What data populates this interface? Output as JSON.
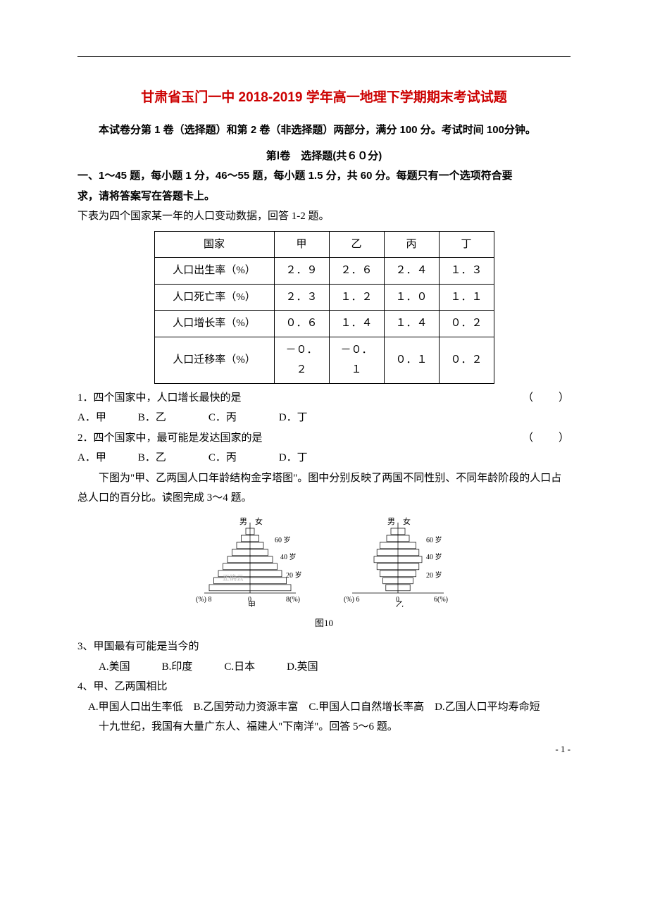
{
  "doc": {
    "title": "甘肃省玉门一中 2018-2019 学年高一地理下学期期末考试试题",
    "intro": "本试卷分第 1 卷（选择题）和第 2 卷（非选择题）两部分，满分 100 分。考试时间 100分钟。",
    "section1_head": "第Ⅰ卷　选择题(共６０分)",
    "instruction_a": "一、1～45 题，每小题 1 分，46～55 题，每小题 1.5 分，共 60 分。每题只有一个选项符合要",
    "instruction_b": "求，请将答案写在答题卡上。",
    "lead1": "下表为四个国家某一年的人口变动数据，回答 1-2 题。",
    "table1": {
      "headers": [
        "国家",
        "甲",
        "乙",
        "丙",
        "丁"
      ],
      "rows": [
        [
          "人口出生率（%）",
          "２．９",
          "２．６",
          "２．４",
          "１．３"
        ],
        [
          "人口死亡率（%）",
          "２．３",
          "１．２",
          "１．０",
          "１．１"
        ],
        [
          "人口增长率（%）",
          "０．６",
          "１．４",
          "１．４",
          "０．２"
        ],
        [
          "人口迁移率（%）",
          "－０．２",
          "－０．１",
          "０．１",
          "０．２"
        ]
      ],
      "border_color": "#000000",
      "col_label_width": 170,
      "col_val_width": 78
    },
    "q1": {
      "stem": "1．四个国家中，人口增长最快的是",
      "paren": "（　　）",
      "options": "A．甲　　　B．乙　　　　C．丙　　　　D．丁"
    },
    "q2": {
      "stem": "2．四个国家中，最可能是发达国家的是",
      "paren": "（　　）",
      "options": "A．甲　　　B．乙　　　　C．丙　　　　D．丁"
    },
    "lead2": "下图为\"甲、乙两国人口年龄结构金字塔图\"。图中分别反映了两国不同性别、不同年龄阶段的人口占总人口的百分比。读图完成 3～4 题。",
    "pyramids": {
      "left": {
        "label_top_l": "男",
        "label_top_r": "女",
        "y_ticks": [
          "60 岁",
          "40 岁",
          "20 岁"
        ],
        "x_left": "(%) 8",
        "x_mid": "0",
        "x_right": "8(%)",
        "name": "甲",
        "watermark": "正确云",
        "bar_steps": 9,
        "bar_color": "#ffffff",
        "line_color": "#000000"
      },
      "right": {
        "label_top_l": "男",
        "label_top_r": "女",
        "y_ticks": [
          "60 岁",
          "40 岁",
          "20 岁"
        ],
        "x_left": "(%) 6",
        "x_mid": "0",
        "x_right": "6(%)",
        "name": "乙",
        "bar_steps": 9,
        "bar_color": "#ffffff",
        "line_color": "#000000"
      },
      "caption": "图10"
    },
    "q3": {
      "stem": "3、甲国最有可能是当今的",
      "options": "A.美国　　　B.印度　　　C.日本　　　D.英国"
    },
    "q4": {
      "stem": "4、甲、乙两国相比",
      "options": "A.甲国人口出生率低　B.乙国劳动力资源丰富　C.甲国人口自然增长率高　D.乙国人口平均寿命短"
    },
    "lead3": "十九世纪，我国有大量广东人、福建人\"下南洋\"。回答 5～6 题。",
    "page_num": "- 1 -"
  },
  "colors": {
    "title": "#cc0000",
    "text": "#000000",
    "background": "#ffffff"
  }
}
